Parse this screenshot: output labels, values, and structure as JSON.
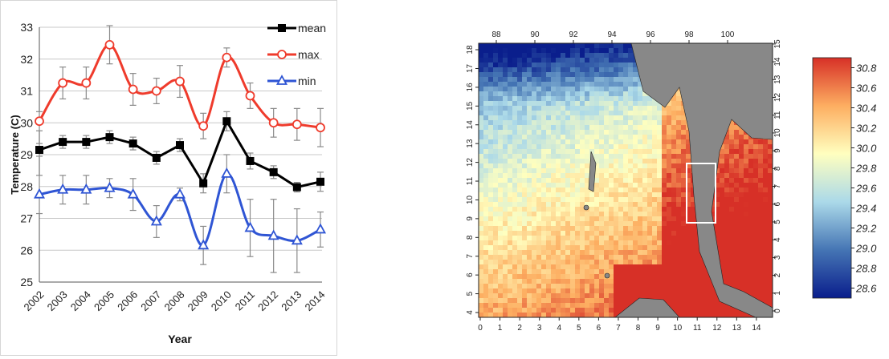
{
  "chart_data": [
    {
      "type": "line",
      "xlabel": "Year",
      "ylabel": "Temperature (C)",
      "ylim": [
        25,
        33
      ],
      "yticks": [
        "25",
        "26",
        "27",
        "28",
        "29",
        "30",
        "31",
        "32",
        "33"
      ],
      "categories": [
        "2002",
        "2003",
        "2004",
        "2005",
        "2006",
        "2007",
        "2008",
        "2009",
        "2010",
        "2011",
        "2012",
        "2013",
        "2014"
      ],
      "grid": "horizontal",
      "legend_position": "top-right",
      "series": [
        {
          "name": "mean",
          "color": "#000000",
          "marker": "square",
          "values": [
            29.15,
            29.4,
            29.4,
            29.55,
            29.35,
            28.9,
            29.3,
            28.1,
            30.05,
            28.8,
            28.45,
            27.98,
            28.15
          ],
          "errors": [
            0.2,
            0.2,
            0.2,
            0.2,
            0.2,
            0.2,
            0.2,
            0.3,
            0.3,
            0.25,
            0.2,
            0.15,
            0.3
          ]
        },
        {
          "name": "max",
          "color": "#ef3b2c",
          "marker": "circle",
          "values": [
            30.05,
            31.25,
            31.25,
            32.45,
            31.05,
            31.0,
            31.3,
            29.9,
            32.05,
            30.85,
            30.0,
            29.95,
            29.85
          ],
          "errors": [
            0.3,
            0.5,
            0.5,
            0.6,
            0.5,
            0.4,
            0.5,
            0.4,
            0.3,
            0.4,
            0.45,
            0.5,
            0.6
          ]
        },
        {
          "name": "min",
          "color": "#2f55d4",
          "marker": "triangle",
          "values": [
            27.75,
            27.9,
            27.9,
            27.95,
            27.75,
            26.9,
            27.75,
            26.15,
            28.4,
            26.7,
            26.45,
            26.3,
            26.65
          ],
          "errors": [
            0.6,
            0.45,
            0.45,
            0.3,
            0.5,
            0.5,
            0.2,
            0.6,
            0.6,
            0.9,
            1.15,
            1.0,
            0.55
          ]
        }
      ]
    },
    {
      "type": "heatmap",
      "top_ticks": [
        "88",
        "90",
        "92",
        "94",
        "96",
        "98",
        "100"
      ],
      "left_ticks": [
        "4",
        "5",
        "6",
        "7",
        "8",
        "9",
        "10",
        "11",
        "12",
        "13",
        "14",
        "15",
        "16",
        "17",
        "18"
      ],
      "right_ticks": [
        "0",
        "1",
        "2",
        "3",
        "4",
        "5",
        "6",
        "7",
        "8",
        "9",
        "10",
        "11",
        "12",
        "13",
        "14",
        "15"
      ],
      "bottom_ticks": [
        "0",
        "1",
        "2",
        "3",
        "4",
        "5",
        "6",
        "7",
        "8",
        "9",
        "10",
        "11",
        "12",
        "13",
        "14"
      ],
      "colorbar": {
        "ticks": [
          "30.8",
          "30.6",
          "30.4",
          "30.2",
          "30.0",
          "29.8",
          "29.6",
          "29.4",
          "29.2",
          "29.0",
          "28.8",
          "28.6"
        ],
        "range": [
          28.5,
          30.9
        ],
        "colors": [
          "#d73027",
          "#fdae61",
          "#ffffbf",
          "#abd9e9",
          "#4575b4",
          "#0a1e8c"
        ]
      },
      "land_color": "#888888",
      "box_color": "#ffffff"
    }
  ]
}
